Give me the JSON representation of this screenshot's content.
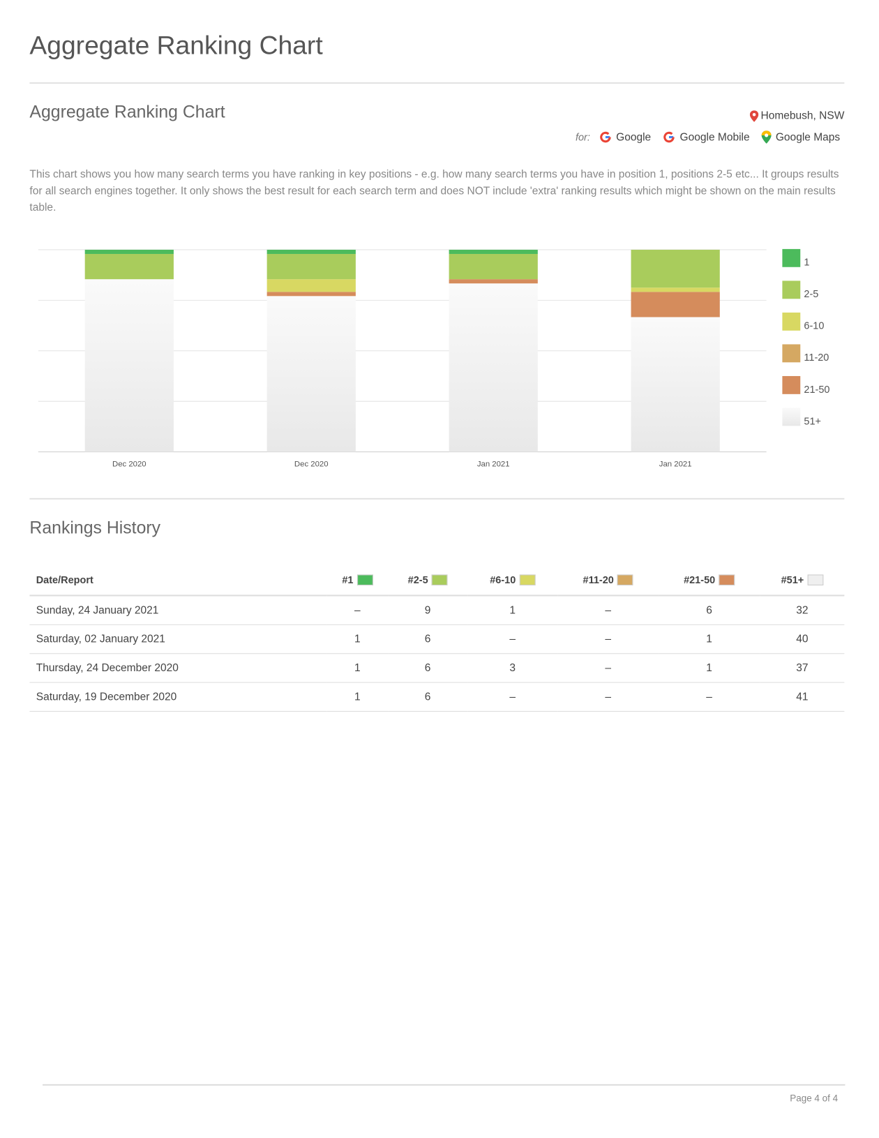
{
  "header": {
    "title": "Aggregate Ranking Chart"
  },
  "section": {
    "title": "Aggregate Ranking Chart",
    "location": "Homebush, NSW",
    "for_label": "for:",
    "engines": [
      "Google",
      "Google Mobile",
      "Google Maps"
    ],
    "description": "This chart shows you how many search terms you have ranking in key positions - e.g. how many search terms you have in position 1, positions 2-5 etc... It groups results for all search engines together. It only shows the best result for each search term and does NOT include 'extra' ranking results which might be shown on the main results table."
  },
  "chart_data": {
    "type": "stacked_bar",
    "categories": [
      "Dec 2020",
      "Dec 2020",
      "Jan 2021",
      "Jan 2021"
    ],
    "series": [
      {
        "name": "1",
        "color": "#4cbb5c",
        "values": [
          1,
          1,
          1,
          0
        ]
      },
      {
        "name": "2-5",
        "color": "#a9cc5c",
        "values": [
          6,
          6,
          6,
          9
        ]
      },
      {
        "name": "6-10",
        "color": "#d8d862",
        "values": [
          0,
          3,
          0,
          1
        ]
      },
      {
        "name": "11-20",
        "color": "#d5a862",
        "values": [
          0,
          0,
          0,
          0
        ]
      },
      {
        "name": "21-50",
        "color": "#d58c5c",
        "values": [
          0,
          1,
          1,
          6
        ]
      },
      {
        "name": "51+",
        "color": "#efefef",
        "values": [
          41,
          37,
          40,
          32
        ]
      }
    ],
    "ylim": [
      0,
      48
    ],
    "yticks": [
      0,
      12,
      24,
      36,
      48
    ],
    "grid": true,
    "legend": "right"
  },
  "history": {
    "title": "Rankings History",
    "header": [
      "Date/Report",
      "#1",
      "#2-5",
      "#6-10",
      "#11-20",
      "#21-50",
      "#51+"
    ],
    "rows": [
      [
        "Sunday, 24 January 2021",
        "–",
        "9",
        "1",
        "–",
        "6",
        "32"
      ],
      [
        "Saturday, 02 January 2021",
        "1",
        "6",
        "–",
        "–",
        "1",
        "40"
      ],
      [
        "Thursday, 24 December 2020",
        "1",
        "6",
        "3",
        "–",
        "1",
        "37"
      ],
      [
        "Saturday, 19 December 2020",
        "1",
        "6",
        "–",
        "–",
        "–",
        "41"
      ]
    ]
  },
  "footer": {
    "page": "Page 4 of 4"
  }
}
